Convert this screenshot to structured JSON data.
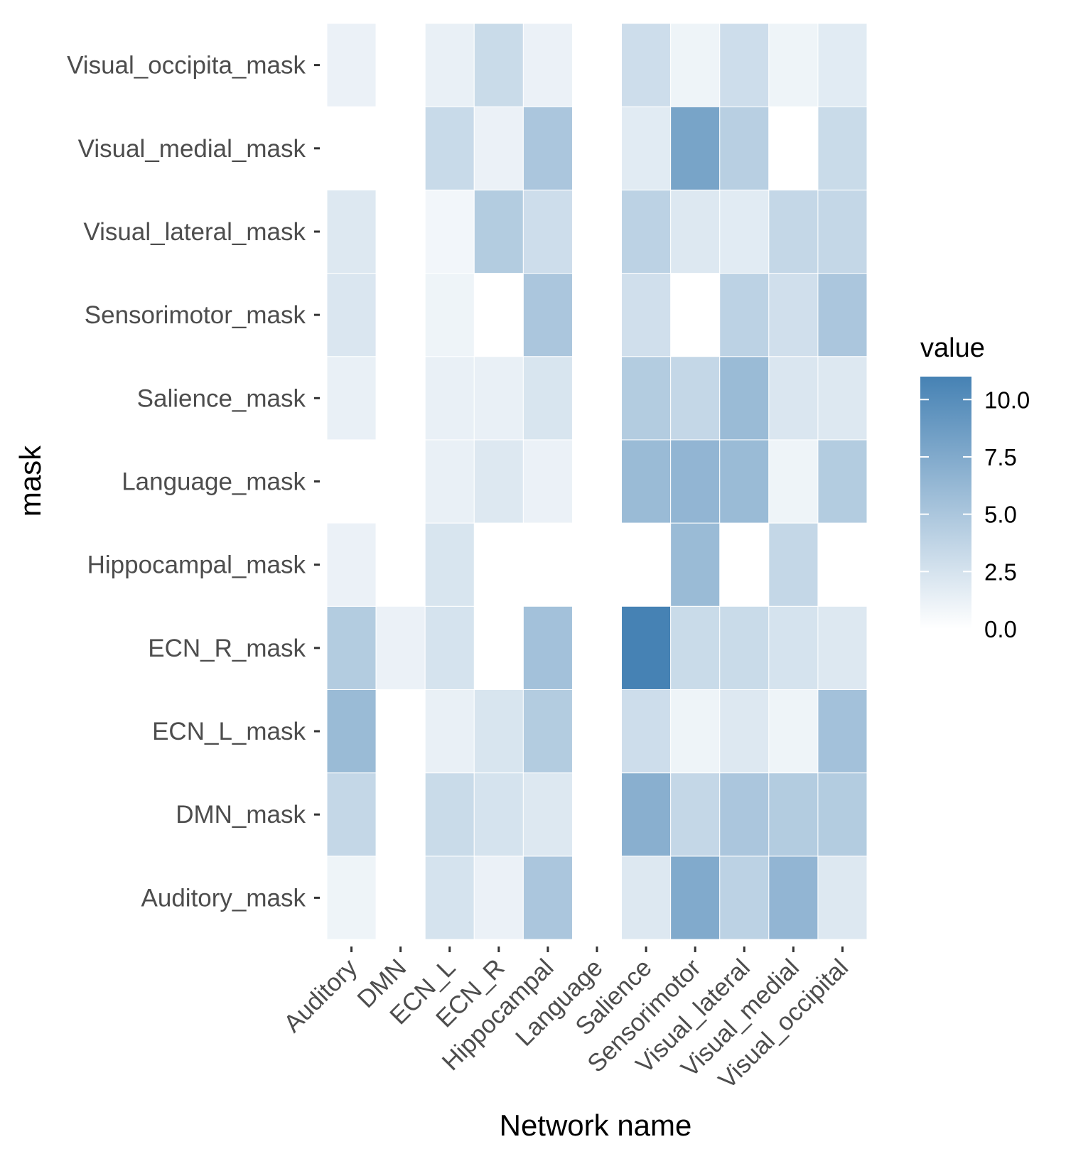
{
  "chart_data": {
    "type": "heatmap",
    "title": "",
    "xlabel": "Network name",
    "ylabel": "mask",
    "x_categories": [
      "Auditory",
      "DMN",
      "ECN_L",
      "ECN_R",
      "Hippocampal",
      "Language",
      "Salience",
      "Sensorimotor",
      "Visual_lateral",
      "Visual_medial",
      "Visual_occipital"
    ],
    "y_categories": [
      "Auditory_mask",
      "DMN_mask",
      "ECN_L_mask",
      "ECN_R_mask",
      "Hippocampal_mask",
      "Language_mask",
      "Salience_mask",
      "Sensorimotor_mask",
      "Visual_lateral_mask",
      "Visual_medial_mask",
      "Visual_occipita_mask"
    ],
    "values": [
      [
        1.0,
        null,
        2.5,
        1.2,
        5.0,
        null,
        2.0,
        7.5,
        4.0,
        6.5,
        2.0
      ],
      [
        3.5,
        null,
        3.2,
        2.5,
        2.0,
        null,
        7.0,
        3.5,
        5.0,
        4.5,
        4.5
      ],
      [
        6.0,
        null,
        1.3,
        2.3,
        4.5,
        null,
        3.0,
        1.0,
        2.0,
        1.0,
        5.5
      ],
      [
        4.5,
        1.2,
        2.5,
        null,
        5.5,
        null,
        11.0,
        3.2,
        3.2,
        2.5,
        2.0
      ],
      [
        1.2,
        null,
        2.3,
        null,
        null,
        null,
        null,
        6.0,
        null,
        3.5,
        null
      ],
      [
        null,
        null,
        1.3,
        2.0,
        1.2,
        null,
        6.0,
        6.5,
        6.0,
        1.0,
        4.5
      ],
      [
        1.3,
        null,
        1.3,
        1.3,
        2.3,
        null,
        4.5,
        3.5,
        6.0,
        2.2,
        2.0
      ],
      [
        2.2,
        null,
        1.0,
        null,
        5.0,
        null,
        2.8,
        null,
        4.0,
        2.8,
        5.0
      ],
      [
        2.0,
        null,
        0.8,
        4.5,
        3.0,
        null,
        4.0,
        2.0,
        1.8,
        3.5,
        3.5
      ],
      [
        null,
        null,
        3.3,
        1.2,
        5.0,
        null,
        1.8,
        8.0,
        4.2,
        0.0,
        3.2
      ],
      [
        1.2,
        null,
        1.3,
        3.2,
        1.2,
        null,
        3.0,
        1.0,
        3.0,
        1.0,
        1.8
      ]
    ],
    "zlim": [
      0,
      11.0
    ],
    "legend": {
      "title": "value",
      "ticks": [
        "0.0",
        "2.5",
        "5.0",
        "7.5",
        "10.0"
      ],
      "tick_values": [
        0,
        2.5,
        5.0,
        7.5,
        10.0
      ],
      "placement": "right"
    },
    "colors": {
      "low": "#ffffff",
      "high": "#4682b4",
      "tile_border": "#ffffff",
      "tick_label": "#4d4d4d",
      "tick_mark": "#333333",
      "background": "#ffffff"
    },
    "grid": false
  }
}
